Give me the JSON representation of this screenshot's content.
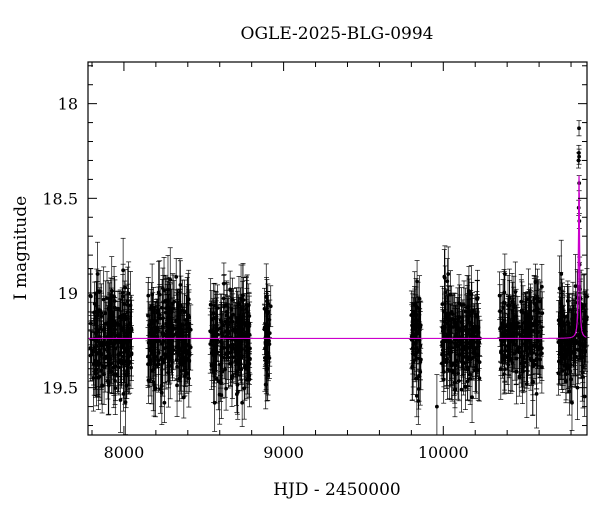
{
  "chart_data": {
    "type": "scatter",
    "title": "OGLE-2025-BLG-0994",
    "xlabel": "HJD - 2450000",
    "ylabel": "I magnitude",
    "xlim": [
      7775,
      10900
    ],
    "ylim": [
      19.75,
      17.78
    ],
    "y_inverted": true,
    "x_ticks": [
      8000,
      9000,
      10000
    ],
    "y_ticks": [
      18,
      18.5,
      19,
      19.5
    ],
    "grid": false,
    "legend": "none",
    "colors": {
      "data": "#000000",
      "model": "#cc00cc",
      "frame": "#000000"
    },
    "baseline_mag": 19.24,
    "scatter_sigma": 0.12,
    "error_bar_typical": 0.13,
    "observing_seasons": [
      {
        "start": 7790,
        "end": 8050,
        "points": 210
      },
      {
        "start": 8150,
        "end": 8420,
        "points": 210
      },
      {
        "start": 8540,
        "end": 8790,
        "points": 210
      },
      {
        "start": 8880,
        "end": 8920,
        "points": 40
      },
      {
        "start": 9800,
        "end": 9860,
        "points": 60
      },
      {
        "start": 9990,
        "end": 10230,
        "points": 190
      },
      {
        "start": 10350,
        "end": 10620,
        "points": 200
      },
      {
        "start": 10720,
        "end": 10900,
        "points": 150
      }
    ],
    "outliers": [
      {
        "x": 7995,
        "y": 18.88
      },
      {
        "x": 8290,
        "y": 18.93
      },
      {
        "x": 10010,
        "y": 18.92
      },
      {
        "x": 9960,
        "y": 19.6
      },
      {
        "x": 10840,
        "y": 19.5
      }
    ],
    "event": {
      "t0": 10850,
      "peak_mag": 18.13,
      "points": [
        {
          "x": 10847,
          "y": 18.3
        },
        {
          "x": 10848,
          "y": 18.55
        },
        {
          "x": 10849,
          "y": 18.26
        },
        {
          "x": 10850,
          "y": 18.13
        },
        {
          "x": 10850.5,
          "y": 18.28
        },
        {
          "x": 10851,
          "y": 18.42
        },
        {
          "x": 10852,
          "y": 18.62
        },
        {
          "x": 10854,
          "y": 18.85
        },
        {
          "x": 10856,
          "y": 18.98
        },
        {
          "x": 10860,
          "y": 19.1
        }
      ]
    },
    "model_curve": {
      "name": "",
      "baseline": 19.24,
      "t0": 10850,
      "peak_mag": 18.38,
      "timescale": 4
    }
  }
}
